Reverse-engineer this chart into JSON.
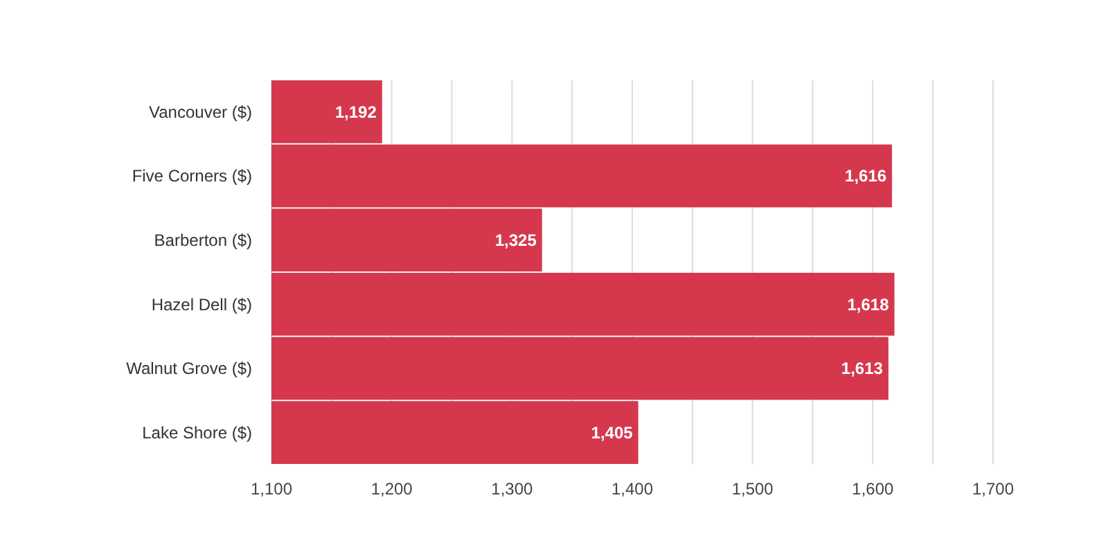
{
  "chart_data": {
    "type": "bar",
    "orientation": "horizontal",
    "categories": [
      "Vancouver ($)",
      "Five Corners ($)",
      "Barberton ($)",
      "Hazel Dell ($)",
      "Walnut Grove ($)",
      "Lake Shore ($)"
    ],
    "values": [
      1192,
      1616,
      1325,
      1618,
      1613,
      1405
    ],
    "color": "#d5384d",
    "xlim": [
      1100,
      1700
    ],
    "xticks": [
      {
        "value": 1100,
        "label": "1,100"
      },
      {
        "value": 1150,
        "label": null
      },
      {
        "value": 1200,
        "label": "1,200"
      },
      {
        "value": 1250,
        "label": null
      },
      {
        "value": 1300,
        "label": "1,300"
      },
      {
        "value": 1350,
        "label": null
      },
      {
        "value": 1400,
        "label": "1,400"
      },
      {
        "value": 1450,
        "label": null
      },
      {
        "value": 1500,
        "label": "1,500"
      },
      {
        "value": 1550,
        "label": null
      },
      {
        "value": 1600,
        "label": "1,600"
      },
      {
        "value": 1650,
        "label": null
      },
      {
        "value": 1700,
        "label": "1,700"
      }
    ],
    "grid": "x",
    "value_labels": [
      "1,192",
      "1,616",
      "1,325",
      "1,618",
      "1,613",
      "1,405"
    ]
  }
}
